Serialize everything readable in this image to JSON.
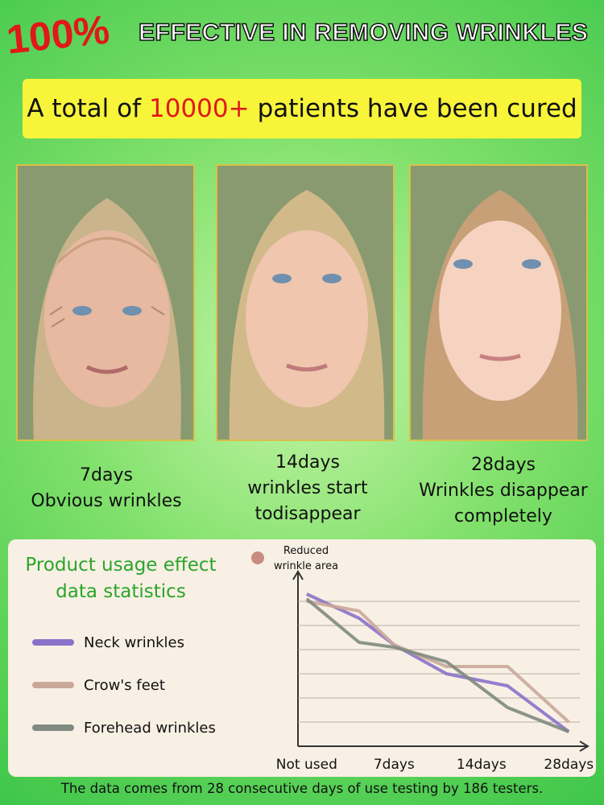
{
  "header": {
    "badge": "100%",
    "title": "EFFECTIVE IN REMOVING WRINKLES"
  },
  "banner": {
    "before": "A total of",
    "highlight": "10000+",
    "after": "patients have been cured"
  },
  "photos": [
    {
      "day": "7days",
      "caption": "Obvious wrinkles"
    },
    {
      "day": "14days",
      "caption": "wrinkles start todisappear"
    },
    {
      "day": "28days",
      "caption": "Wrinkles disappear completely"
    }
  ],
  "chart_data": {
    "type": "line",
    "title": "Product usage effect data statistics",
    "annotation": "Reduced wrinkle area",
    "x": [
      0,
      0.6,
      1,
      1.6,
      2.3,
      3
    ],
    "xlim": [
      -0.1,
      3.2
    ],
    "xticks": [
      {
        "value": 0,
        "label": "Not used"
      },
      {
        "value": 1,
        "label": "7days"
      },
      {
        "value": 2,
        "label": "14days"
      },
      {
        "value": 3,
        "label": "28days"
      }
    ],
    "ylim": [
      0,
      7
    ],
    "yticks": [
      1,
      2,
      3,
      4,
      5,
      6
    ],
    "grid": true,
    "series": [
      {
        "name": "Neck wrinkles",
        "color": "#8a72c8",
        "values": [
          6.3,
          5.3,
          4.2,
          3.0,
          2.5,
          0.6
        ]
      },
      {
        "name": "Crow's feet",
        "color": "#c9a89a",
        "values": [
          6.0,
          5.6,
          4.2,
          3.3,
          3.3,
          1.0
        ]
      },
      {
        "name": "Forehead wrinkles",
        "color": "#7f8a80",
        "values": [
          6.1,
          4.3,
          4.1,
          3.5,
          1.6,
          0.6
        ]
      }
    ]
  },
  "footer": "The data comes from 28 consecutive days of use testing by 186 testers."
}
